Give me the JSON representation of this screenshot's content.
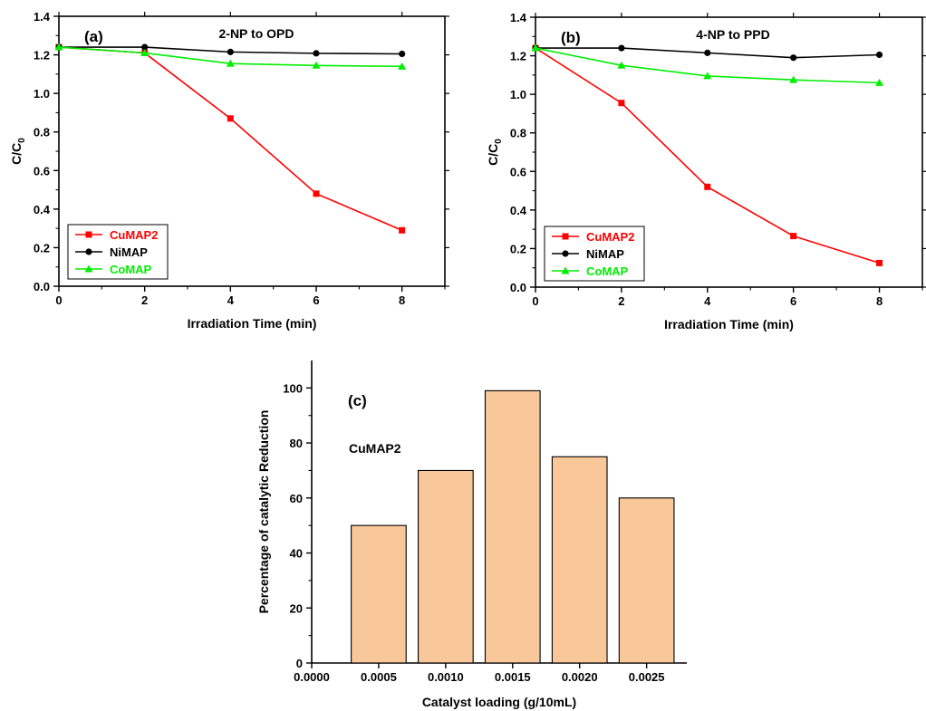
{
  "chart_data": [
    {
      "type": "line",
      "panel_label": "(a)",
      "title": "2-NP to OPD",
      "xlabel": "Irradiation Time (min)",
      "ylabel": "C/C0",
      "xlim": [
        0,
        9
      ],
      "ylim": [
        0,
        1.4
      ],
      "x_ticks": [
        "0",
        "2",
        "4",
        "6",
        "8"
      ],
      "y_ticks": [
        "0.0",
        "0.2",
        "0.4",
        "0.6",
        "0.8",
        "1.0",
        "1.2",
        "1.4"
      ],
      "x": [
        0,
        2,
        4,
        6,
        8
      ],
      "legend_position": "bottom-left",
      "series": [
        {
          "name": "CuMAP2",
          "values": [
            1.24,
            1.21,
            0.87,
            0.48,
            0.29
          ],
          "color": "#ff0000",
          "marker": "square"
        },
        {
          "name": "NiMAP",
          "values": [
            1.24,
            1.24,
            1.215,
            1.208,
            1.205
          ],
          "color": "#000000",
          "marker": "circle"
        },
        {
          "name": "CoMAP",
          "values": [
            1.24,
            1.21,
            1.155,
            1.145,
            1.14
          ],
          "color": "#00ee00",
          "marker": "triangle"
        }
      ]
    },
    {
      "type": "line",
      "panel_label": "(b)",
      "title": "4-NP to PPD",
      "xlabel": "Irradiation Time (min)",
      "ylabel": "C/C0",
      "xlim": [
        0,
        9
      ],
      "ylim": [
        0,
        1.4
      ],
      "x_ticks": [
        "0",
        "2",
        "4",
        "6",
        "8"
      ],
      "y_ticks": [
        "0.0",
        "0.2",
        "0.4",
        "0.6",
        "0.8",
        "1.0",
        "1.2",
        "1.4"
      ],
      "x": [
        0,
        2,
        4,
        6,
        8
      ],
      "legend_position": "bottom-left",
      "series": [
        {
          "name": "CuMAP2",
          "values": [
            1.24,
            0.955,
            0.52,
            0.265,
            0.125
          ],
          "color": "#ff0000",
          "marker": "square"
        },
        {
          "name": "NiMAP",
          "values": [
            1.24,
            1.24,
            1.215,
            1.19,
            1.205
          ],
          "color": "#000000",
          "marker": "circle"
        },
        {
          "name": "CoMAP",
          "values": [
            1.24,
            1.15,
            1.095,
            1.075,
            1.06
          ],
          "color": "#00ee00",
          "marker": "triangle"
        }
      ]
    },
    {
      "type": "bar",
      "panel_label": "(c)",
      "annotation": "CuMAP2",
      "xlabel": "Catalyst loading (g/10mL)",
      "ylabel": "Percentage of catalytic Reduction",
      "xlim": [
        0,
        0.0028
      ],
      "ylim": [
        0,
        110
      ],
      "x_ticks": [
        "0.0000",
        "0.0005",
        "0.0010",
        "0.0015",
        "0.0020",
        "0.0025"
      ],
      "y_ticks": [
        "0",
        "20",
        "40",
        "60",
        "80",
        "100"
      ],
      "x": [
        0.0005,
        0.001,
        0.0015,
        0.002,
        0.0025
      ],
      "values": [
        50,
        70,
        99,
        75,
        60
      ],
      "bar_color": "#f8c79a",
      "grid": false
    }
  ]
}
